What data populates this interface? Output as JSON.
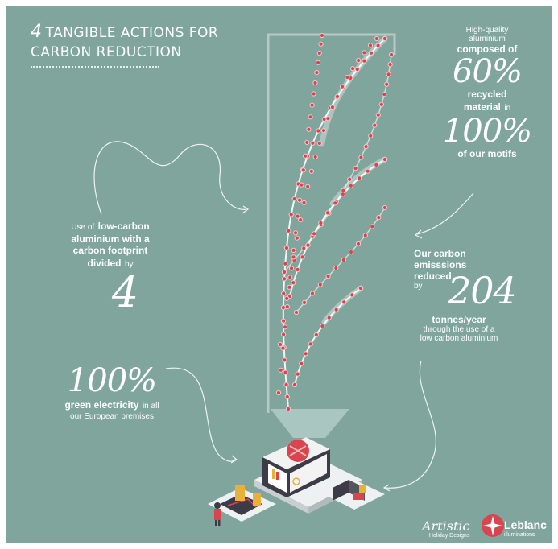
{
  "title": {
    "number": "4",
    "line1": "TANGIBLE ACTIONS FOR",
    "line2": "CARBON REDUCTION"
  },
  "block_recycled": {
    "l1": "High-quality",
    "l2": "aluminium",
    "l3": "composed of",
    "big1": "60%",
    "l4": "recycled",
    "l5": "material",
    "l5b": "in",
    "big2": "100%",
    "l6": "of our motifs"
  },
  "block_lowcarbon": {
    "l1": "Use of",
    "l1b": "low-carbon",
    "l2": "aluminium with a",
    "l3": "carbon footprint",
    "l4": "divided",
    "l4b": "by",
    "big": "4"
  },
  "block_emissions": {
    "l1": "Our carbon",
    "l2": "emisssions",
    "l3": "reduced",
    "l4": "by",
    "big": "204",
    "l5": "tonnes/year",
    "l6": "through the use of a",
    "l7": "low carbon aluminium"
  },
  "block_green": {
    "big": "100%",
    "l1": "green electricity",
    "l1b": "in all",
    "l2": "our European premises"
  },
  "logos": {
    "artistic": "Artistic",
    "artistic_sub": "Holiday Designs",
    "leblanc": "Leblanc",
    "leblanc_sub": "illuminations"
  },
  "colors": {
    "background": "#7fa59d",
    "dot": "#d9454f",
    "text": "#ffffff"
  }
}
